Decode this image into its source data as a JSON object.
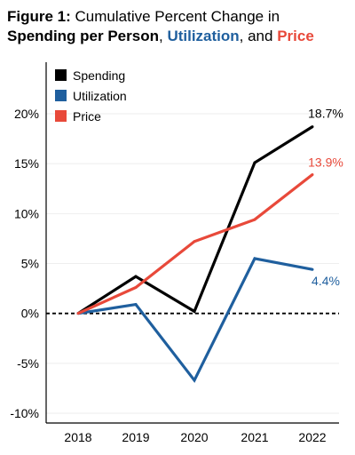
{
  "title": {
    "prefix": "Figure 1:",
    "line1": " Cumulative Percent Change in",
    "spending": "Spending per Person",
    "comma": ", ",
    "utilization": "Utilization",
    "and": ", and ",
    "price": "Price"
  },
  "colors": {
    "spending": "#000000",
    "utilization": "#1f5f9e",
    "price": "#e8493a",
    "zero_line": "#000000",
    "grid": "#eeeeee"
  },
  "chart_data": {
    "type": "line",
    "x": [
      "2018",
      "2019",
      "2020",
      "2021",
      "2022"
    ],
    "ylim": [
      -10,
      20
    ],
    "yticks": [
      20,
      15,
      10,
      5,
      0,
      -5,
      -10
    ],
    "ytick_labels": [
      "20%",
      "15%",
      "10%",
      "5%",
      "0%",
      "-5%",
      "-10%"
    ],
    "legend_position": "top-left",
    "grid": true,
    "series": [
      {
        "key": "spending",
        "name": "Spending",
        "values": [
          0,
          3.7,
          0.2,
          15.1,
          18.7
        ],
        "end_label": "18.7%"
      },
      {
        "key": "utilization",
        "name": "Utilization",
        "values": [
          0,
          0.9,
          -6.7,
          5.5,
          4.4
        ],
        "end_label": "4.4%"
      },
      {
        "key": "price",
        "name": "Price",
        "values": [
          0,
          2.6,
          7.2,
          9.4,
          13.9
        ],
        "end_label": "13.9%"
      }
    ]
  }
}
